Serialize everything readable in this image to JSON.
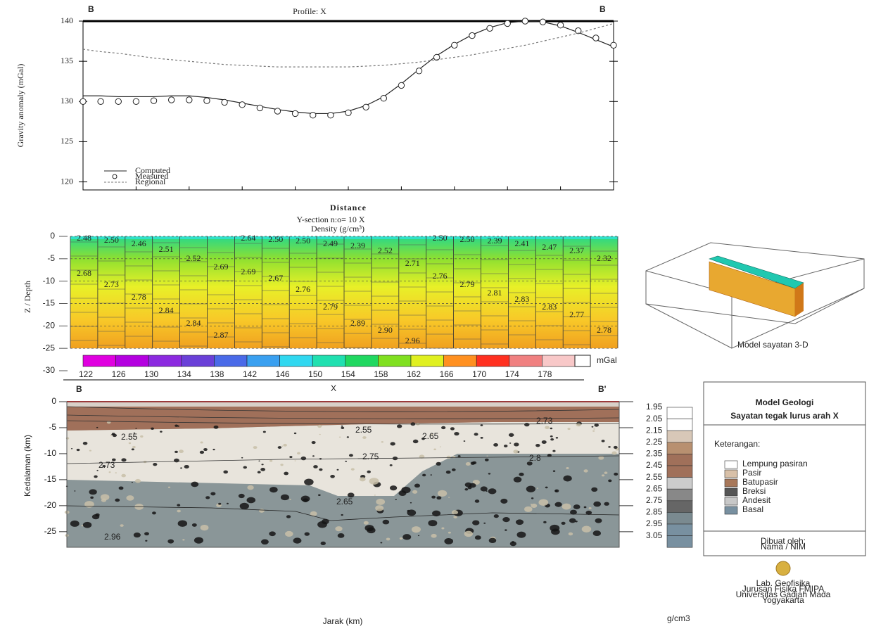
{
  "chart_data": [
    {
      "type": "line",
      "title": "Profile: X",
      "corner_labels": [
        "B",
        "B"
      ],
      "y_label": "Gravity anomaly (mGal)",
      "x_label": "Distance",
      "ylim": [
        119,
        140
      ],
      "yticks": [
        120,
        125,
        130,
        135,
        140
      ],
      "series": [
        {
          "name": "Computed",
          "color": "#222222",
          "line_style": "solid",
          "marker": "none",
          "values": [
            130.7,
            130.7,
            130.6,
            130.6,
            130.6,
            130.7,
            130.7,
            130.5,
            130.2,
            129.8,
            129.4,
            129,
            128.7,
            128.5,
            128.5,
            128.8,
            129.5,
            130.6,
            132.2,
            134,
            135.7,
            137.1,
            138.3,
            139.2,
            139.8,
            140,
            139.9,
            139.4,
            138.6,
            137.7,
            136.8
          ]
        },
        {
          "name": "Measured",
          "color": "#222222",
          "line_style": "none",
          "marker": "circle",
          "values": [
            130,
            130,
            130,
            130,
            130.1,
            130.2,
            130.2,
            130.1,
            129.9,
            129.6,
            129.2,
            128.8,
            128.5,
            128.3,
            128.3,
            128.6,
            129.3,
            130.4,
            132,
            133.8,
            135.5,
            137,
            138.2,
            139.1,
            139.7,
            140,
            139.9,
            139.5,
            138.8,
            137.9,
            137
          ]
        },
        {
          "name": "Regional",
          "color": "#777777",
          "line_style": "dashed",
          "marker": "none",
          "values": [
            136.5,
            136.2,
            136,
            135.7,
            135.4,
            135.2,
            135,
            134.8,
            134.6,
            134.5,
            134.4,
            134.3,
            134.3,
            134.3,
            134.3,
            134.3,
            134.4,
            134.5,
            134.7,
            134.9,
            135.2,
            135.5,
            135.8,
            136.2,
            136.6,
            137,
            137.5,
            138,
            138.5,
            139.1,
            139.7
          ]
        }
      ]
    },
    {
      "type": "section",
      "title": "Y-section n:o= 10  X",
      "subtitle": "Density (g/cm³)",
      "y_label": "Z / Depth",
      "ylim": [
        -30,
        0
      ],
      "yticks": [
        0,
        -5,
        -10,
        -15,
        -20,
        -25,
        -30
      ],
      "cell_labels": [
        [
          "2.48",
          "2.68"
        ],
        [
          "2.50",
          "2.73"
        ],
        [
          "2.46",
          "2.78"
        ],
        [
          "2.51",
          "2.84"
        ],
        [
          "2.52",
          "2.84"
        ],
        [
          "2.69",
          "2.87"
        ],
        [
          "2.64",
          "2.69"
        ],
        [
          "2.50",
          "2.67"
        ],
        [
          "2.50",
          "2.76"
        ],
        [
          "2.49",
          "2.79"
        ],
        [
          "2.39",
          "2.89"
        ],
        [
          "2.52",
          "2.90"
        ],
        [
          "2.71",
          "2.96"
        ],
        [
          "2.50",
          "2.76"
        ],
        [
          "2.50",
          "2.79"
        ],
        [
          "2.39",
          "2.81"
        ],
        [
          "2.41",
          "2.83"
        ],
        [
          "2.47",
          "2.83"
        ],
        [
          "2.37",
          "2.77"
        ],
        [
          "2.32",
          "2.78"
        ]
      ],
      "colorbar": {
        "unit": "mGal",
        "ticks": [
          122,
          126,
          130,
          134,
          138,
          142,
          146,
          150,
          154,
          158,
          162,
          166,
          170,
          174,
          178
        ],
        "colors": [
          "#e000e0",
          "#b400e0",
          "#8c2ae0",
          "#6a40d8",
          "#4a6ae8",
          "#3aa0f0",
          "#30d8f0",
          "#20e0b0",
          "#20d860",
          "#80e020",
          "#e0f020",
          "#ff9020",
          "#ff3020",
          "#f08080",
          "#f8c8c8"
        ]
      },
      "inset_label": "Model sayatan 3-D"
    },
    {
      "type": "geologic-section",
      "corner_labels": [
        "B",
        "X",
        "B'"
      ],
      "y_label": "Kedalaman (km)",
      "x_label": "Jarak (km)",
      "ylim": [
        -28,
        0
      ],
      "yticks": [
        0,
        -5,
        -10,
        -15,
        -20,
        -25
      ],
      "density_labels": [
        "2.55",
        "2.55",
        "2.65",
        "2.73",
        "2.73",
        "2.75",
        "2.8",
        "2.65",
        "2.96"
      ],
      "density_scale": {
        "unit": "g/cm3",
        "ticks": [
          1.95,
          2.05,
          2.15,
          2.25,
          2.35,
          2.45,
          2.55,
          2.65,
          2.75,
          2.85,
          2.95,
          3.05
        ]
      },
      "legend": {
        "title": "Model Geologi",
        "subtitle": "Sayatan tegak lurus arah X",
        "heading": "Keterangan:",
        "items": [
          {
            "name": "Lempung pasiran",
            "color": "#ffffff"
          },
          {
            "name": "Pasir",
            "color": "#d8c0a8"
          },
          {
            "name": "Batupasir",
            "color": "#a8785a"
          },
          {
            "name": "Breksi",
            "color": "#555555"
          },
          {
            "name": "Andesit",
            "color": "#c8c8c8"
          },
          {
            "name": "Basal",
            "color": "#7890a0"
          }
        ],
        "credits": [
          "Dibuat oleh:",
          "Nama / NIM",
          "Lab. Geofisika",
          "Jurusan Fisika FMIPA",
          "Universitas Gadjah Mada",
          "Yogyakarta"
        ]
      }
    }
  ]
}
